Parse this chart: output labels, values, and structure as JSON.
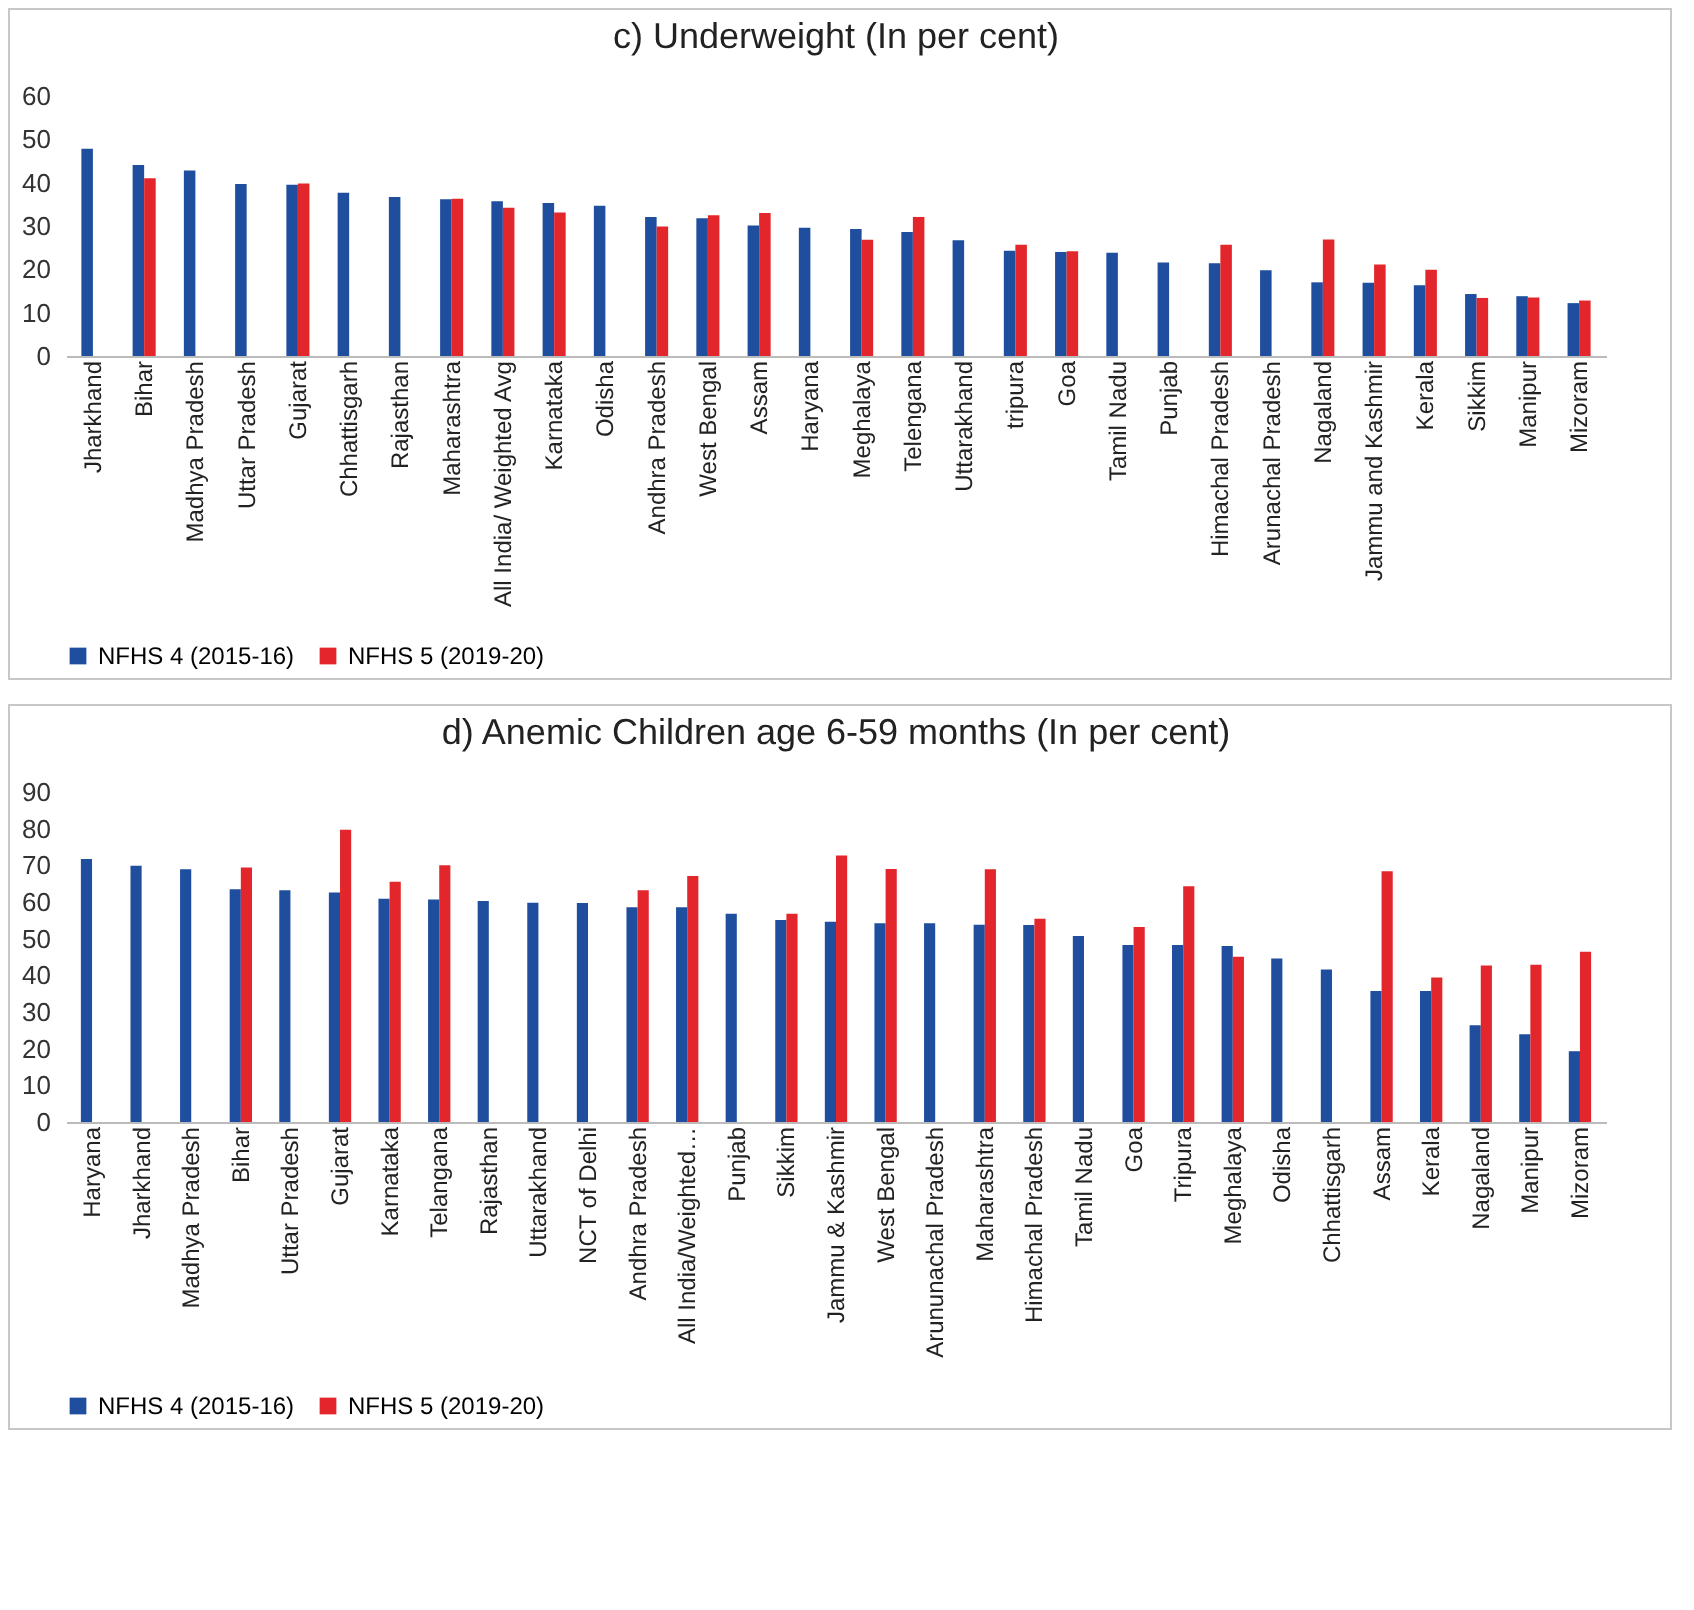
{
  "chart_data": [
    {
      "type": "bar",
      "title": "c) Underweight (In per cent)",
      "categories": [
        "Jharkhand",
        "Bihar",
        "Madhya Pradesh",
        "Uttar Pradesh",
        "Gujarat",
        "Chhattisgarh",
        "Rajasthan",
        "Maharashtra",
        "All India/ Weighted Avg",
        "Karnataka",
        "Odisha",
        "Andhra Pradesh",
        "West Bengal",
        "Assam",
        "Haryana",
        "Meghalaya",
        "Telengana",
        "Uttarakhand",
        "tripura",
        "Goa",
        "Tamil Nadu",
        "Punjab",
        "Himachal Pradesh",
        "Arunachal Pradesh",
        "Nagaland",
        "Jammu and Kashmir",
        "Kerala",
        "Sikkim",
        "Manipur",
        "Mizoram"
      ],
      "series": [
        {
          "name": "NFHS 4 (2015-16)",
          "color": "#1f4e9e",
          "values": [
            47.8,
            44.1,
            42.8,
            39.7,
            39.5,
            37.7,
            36.7,
            36.2,
            35.7,
            35.3,
            34.7,
            32.1,
            31.8,
            30.1,
            29.6,
            29.3,
            28.6,
            26.7,
            24.3,
            24.0,
            23.8,
            21.6,
            21.4,
            19.8,
            17.0,
            16.9,
            16.3,
            14.3,
            13.8,
            12.2
          ]
        },
        {
          "name": "NFHS 5 (2019-20)",
          "color": "#e3262b",
          "values": [
            null,
            41.0,
            null,
            null,
            39.8,
            null,
            null,
            36.3,
            34.2,
            33.1,
            null,
            29.9,
            32.5,
            33.0,
            null,
            26.8,
            32.1,
            null,
            25.7,
            24.2,
            null,
            null,
            25.7,
            null,
            26.9,
            21.1,
            19.9,
            13.4,
            13.5,
            12.8
          ]
        }
      ],
      "ylim": [
        0,
        60
      ],
      "yticks": [
        0,
        10,
        20,
        30,
        40,
        50,
        60
      ],
      "legend": "bottom"
    },
    {
      "type": "bar",
      "title": "d) Anemic Children age 6-59 months (In per cent)",
      "categories": [
        "Haryana",
        "Jharkhand",
        "Madhya Pradesh",
        "Bihar",
        "Uttar Pradesh",
        "Gujarat",
        "Karnataka",
        "Telangana",
        "Rajasthan",
        "Uttarakhand",
        "NCT of Delhi",
        "Andhra Pradesh",
        "All India/Weighted…",
        "Punjab",
        "Sikkim",
        "Jammu & Kashmir",
        "West Bengal",
        "Arununachal Pradesh",
        "Maharashtra",
        "Himachal Pradesh",
        "Tamil Nadu",
        "Goa",
        "Tripura",
        "Meghalaya",
        "Odisha",
        "Chhattisgarh",
        "Assam",
        "Kerala",
        "Nagaland",
        "Manipur",
        "Mizoram"
      ],
      "series": [
        {
          "name": "NFHS 4 (2015-16)",
          "color": "#1f4e9e",
          "values": [
            71.7,
            69.9,
            68.9,
            63.5,
            63.2,
            62.6,
            60.9,
            60.7,
            60.3,
            59.8,
            59.7,
            58.6,
            58.6,
            56.8,
            55.1,
            54.6,
            54.2,
            54.2,
            53.8,
            53.7,
            50.7,
            48.3,
            48.3,
            48.0,
            44.6,
            41.6,
            35.7,
            35.7,
            26.4,
            23.9,
            19.3
          ]
        },
        {
          "name": "NFHS 5 (2019-20)",
          "color": "#e3262b",
          "values": [
            null,
            null,
            null,
            69.4,
            null,
            79.7,
            65.5,
            70.0,
            null,
            null,
            null,
            63.2,
            67.1,
            null,
            56.8,
            72.7,
            69.0,
            null,
            68.9,
            55.4,
            null,
            53.2,
            64.3,
            45.1,
            null,
            null,
            68.4,
            39.4,
            42.7,
            42.9,
            46.4
          ]
        }
      ],
      "ylim": [
        0,
        90
      ],
      "yticks": [
        0,
        10,
        20,
        30,
        40,
        50,
        60,
        70,
        80,
        90
      ],
      "legend": "bottom"
    }
  ]
}
